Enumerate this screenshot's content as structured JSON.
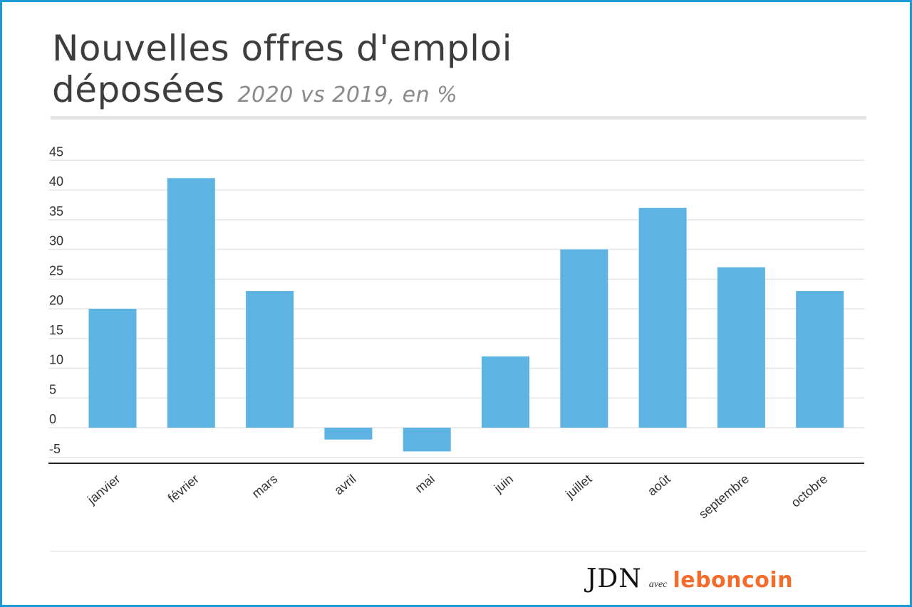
{
  "header": {
    "title_line1": "Nouvelles offres d'emploi",
    "title_line2": "déposées",
    "subtitle": "2020 vs 2019, en %"
  },
  "footer": {
    "brand1": "JDN",
    "connector": "avec",
    "brand2": "leboncoin"
  },
  "colors": {
    "bar": "#5db4e3",
    "border": "#1a9ad6",
    "brand2": "#f56b2a"
  },
  "chart_data": {
    "type": "bar",
    "title": "Nouvelles offres d'emploi déposées",
    "subtitle": "2020 vs 2019, en %",
    "categories": [
      "janvier",
      "février",
      "mars",
      "avril",
      "mai",
      "juin",
      "juillet",
      "août",
      "septembre",
      "octobre"
    ],
    "values": [
      20,
      42,
      23,
      -2,
      -4,
      12,
      30,
      37,
      27,
      23
    ],
    "yticks": [
      -5,
      0,
      5,
      10,
      15,
      20,
      25,
      30,
      35,
      40,
      45
    ],
    "ylim": [
      -6,
      45
    ],
    "grid": true,
    "legend": "none"
  }
}
